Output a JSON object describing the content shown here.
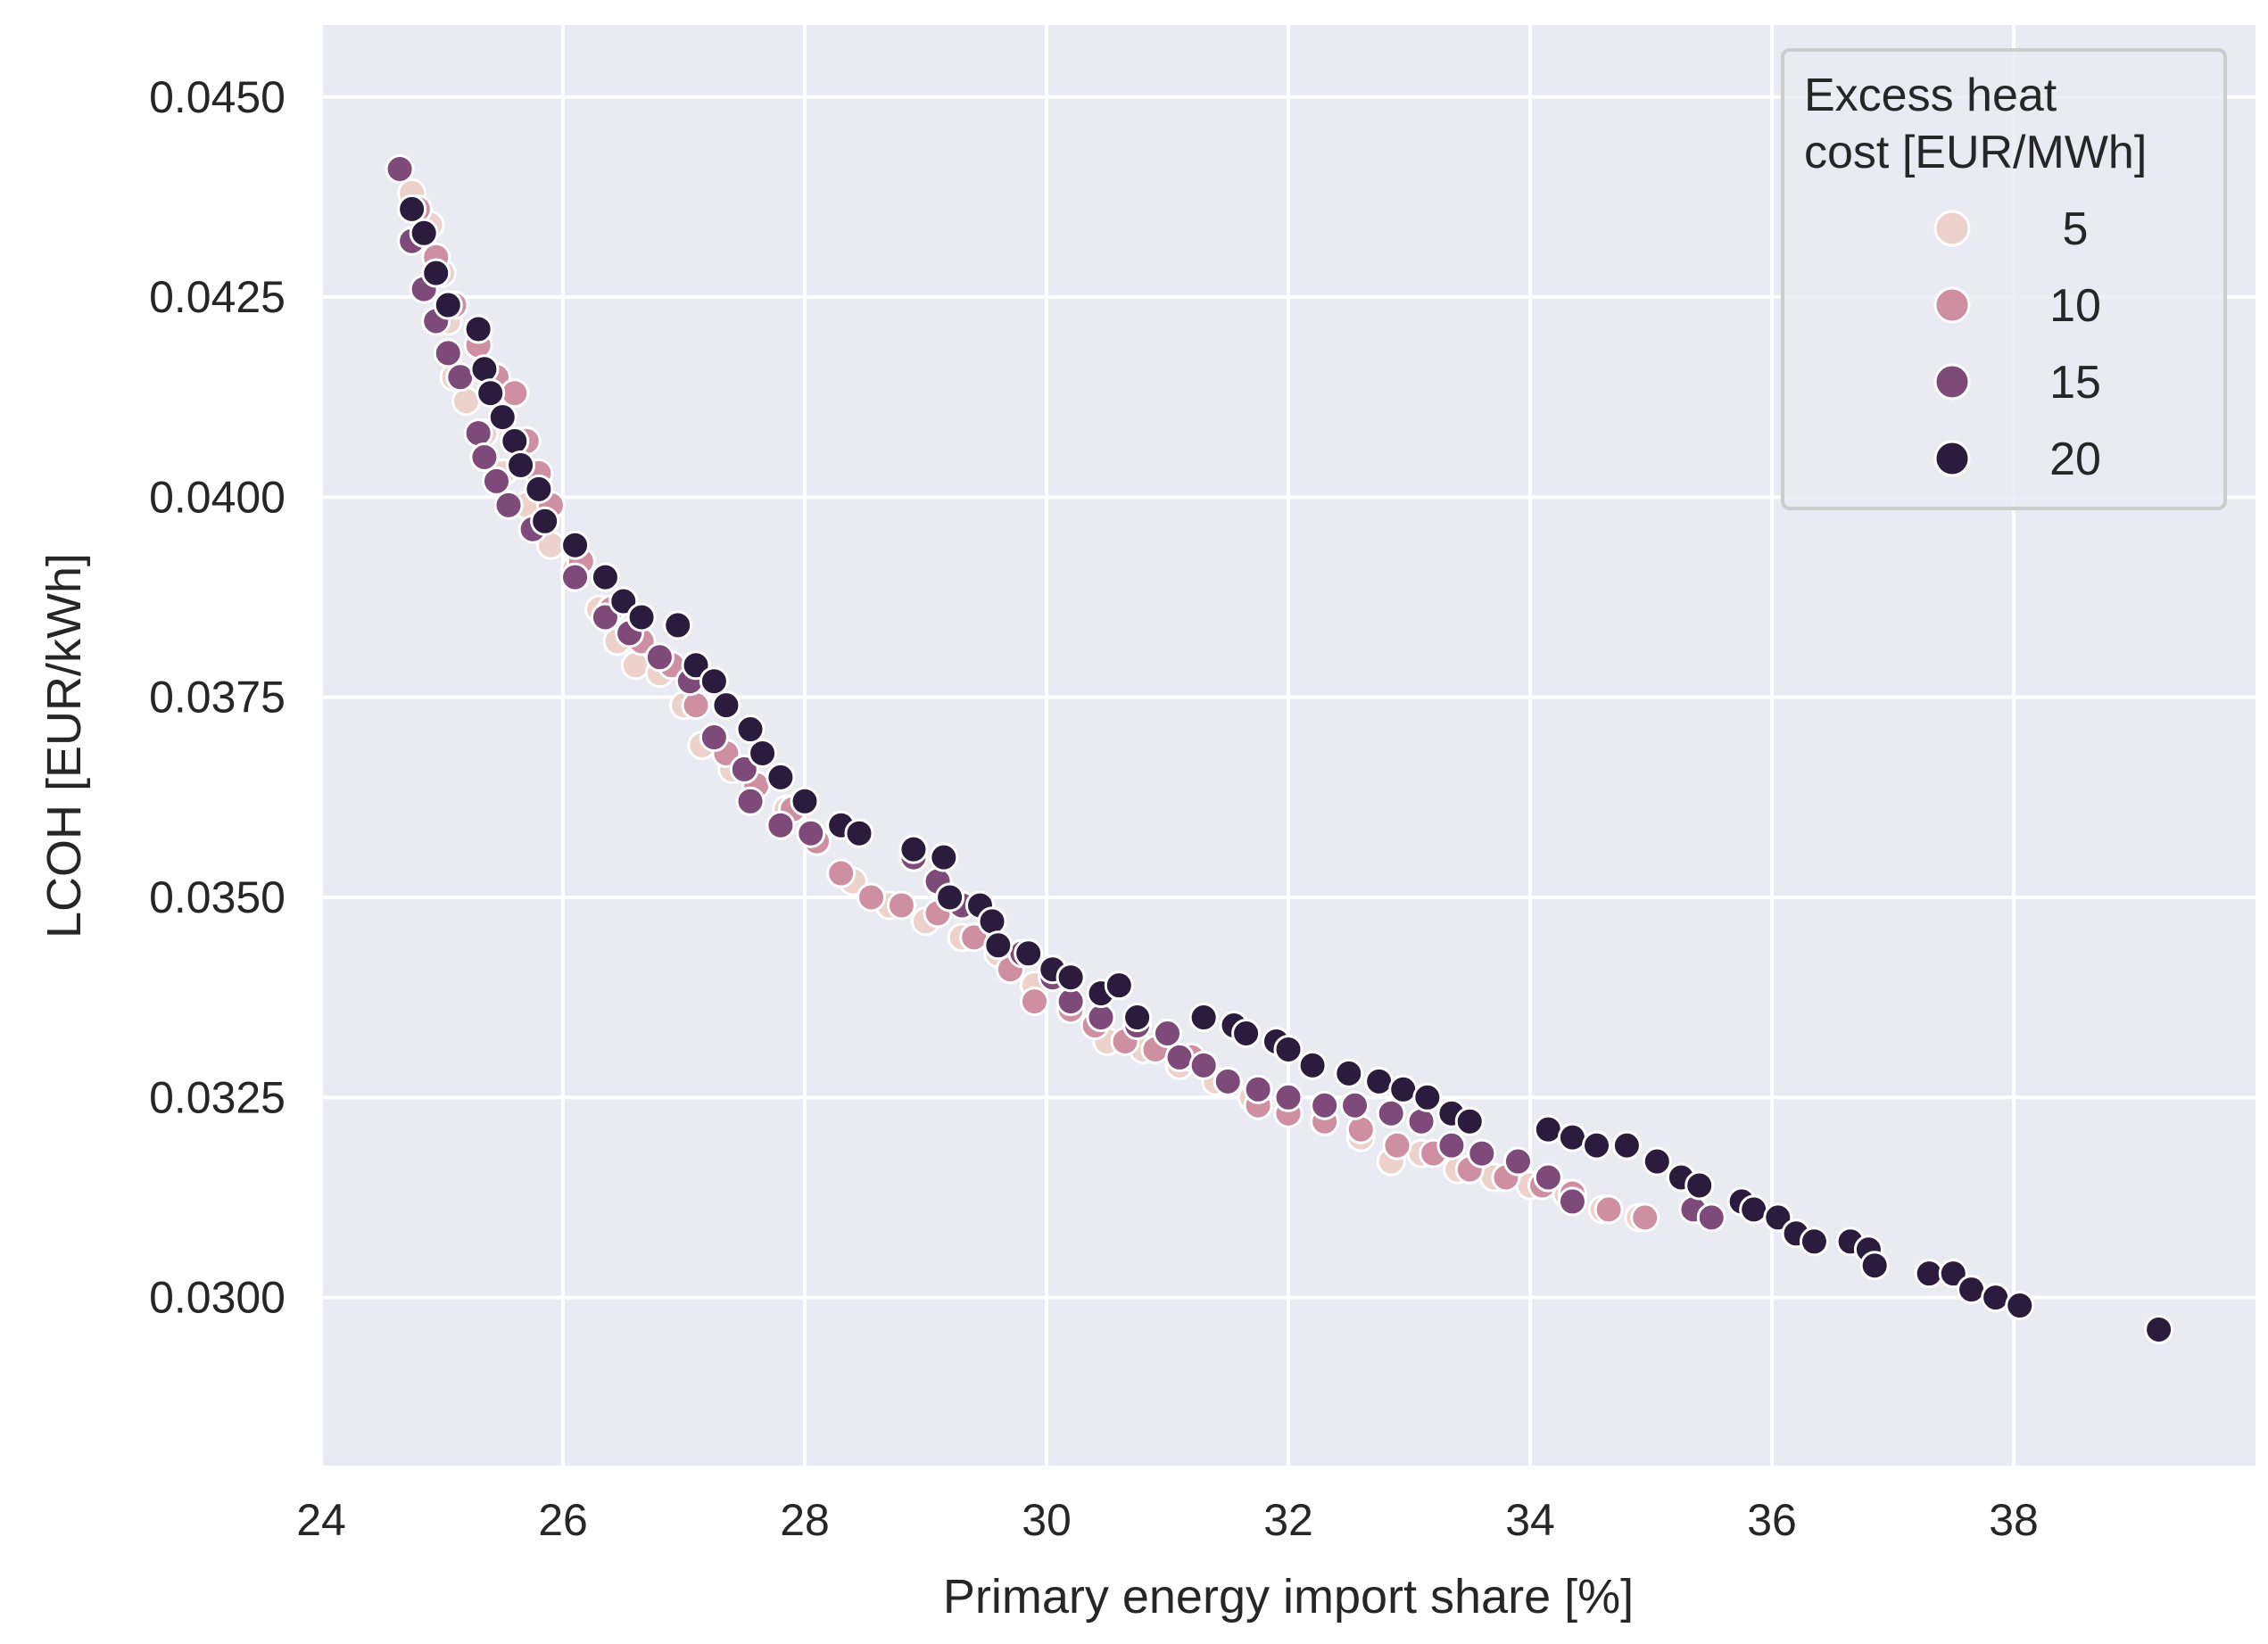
{
  "chart_data": {
    "type": "scatter",
    "title": "",
    "xlabel": "Primary energy import share [%]",
    "ylabel": "LCOH [EUR/kWh]",
    "xlim": [
      24,
      40.0
    ],
    "ylim": [
      0.0279,
      0.0459
    ],
    "x_ticks": [
      24,
      26,
      28,
      30,
      32,
      34,
      36,
      38
    ],
    "x_tick_labels": [
      "24",
      "26",
      "28",
      "30",
      "32",
      "34",
      "36",
      "38"
    ],
    "y_ticks": [
      0.03,
      0.0325,
      0.035,
      0.0375,
      0.04,
      0.0425,
      0.045
    ],
    "y_tick_labels": [
      "0.0300",
      "0.0325",
      "0.0350",
      "0.0375",
      "0.0400",
      "0.0425",
      "0.0450"
    ],
    "grid": true,
    "legend": {
      "title_lines": [
        "Excess heat",
        "cost [EUR/MWh]"
      ],
      "placement": "top-right"
    },
    "series": [
      {
        "name": "5",
        "color": "#edd1cb",
        "points": [
          [
            24.75,
            0.0438
          ],
          [
            24.9,
            0.0434
          ],
          [
            25.0,
            0.0428
          ],
          [
            25.05,
            0.0422
          ],
          [
            25.1,
            0.0415
          ],
          [
            25.2,
            0.0412
          ],
          [
            25.35,
            0.0408
          ],
          [
            25.5,
            0.0403
          ],
          [
            25.7,
            0.0399
          ],
          [
            25.9,
            0.0394
          ],
          [
            26.1,
            0.0391
          ],
          [
            26.3,
            0.0386
          ],
          [
            26.45,
            0.0382
          ],
          [
            26.6,
            0.0379
          ],
          [
            26.8,
            0.0378
          ],
          [
            27.0,
            0.0374
          ],
          [
            27.15,
            0.0369
          ],
          [
            27.4,
            0.0366
          ],
          [
            27.6,
            0.0364
          ],
          [
            27.85,
            0.0361
          ],
          [
            28.1,
            0.0357
          ],
          [
            28.4,
            0.0352
          ],
          [
            28.7,
            0.0349
          ],
          [
            29.0,
            0.0347
          ],
          [
            29.3,
            0.0345
          ],
          [
            29.6,
            0.0343
          ],
          [
            29.9,
            0.0339
          ],
          [
            30.2,
            0.0336
          ],
          [
            30.5,
            0.0332
          ],
          [
            30.8,
            0.0331
          ],
          [
            31.1,
            0.0329
          ],
          [
            31.4,
            0.0327
          ],
          [
            31.7,
            0.0325
          ],
          [
            32.0,
            0.0323
          ],
          [
            32.3,
            0.0322
          ],
          [
            32.6,
            0.032
          ],
          [
            32.85,
            0.0317
          ],
          [
            33.1,
            0.0318
          ],
          [
            33.4,
            0.0316
          ],
          [
            33.7,
            0.0315
          ],
          [
            34.0,
            0.0314
          ],
          [
            34.3,
            0.0313
          ],
          [
            34.6,
            0.0311
          ],
          [
            34.9,
            0.031
          ]
        ]
      },
      {
        "name": "10",
        "color": "#cf8fa3",
        "points": [
          [
            24.8,
            0.0436
          ],
          [
            24.95,
            0.043
          ],
          [
            25.1,
            0.0424
          ],
          [
            25.3,
            0.0419
          ],
          [
            25.45,
            0.0415
          ],
          [
            25.6,
            0.0413
          ],
          [
            25.7,
            0.0407
          ],
          [
            25.8,
            0.0403
          ],
          [
            25.9,
            0.0399
          ],
          [
            26.15,
            0.0392
          ],
          [
            26.4,
            0.0386
          ],
          [
            26.65,
            0.0382
          ],
          [
            26.9,
            0.0379
          ],
          [
            27.1,
            0.0374
          ],
          [
            27.35,
            0.0368
          ],
          [
            27.6,
            0.0364
          ],
          [
            27.9,
            0.0361
          ],
          [
            28.1,
            0.0357
          ],
          [
            28.3,
            0.0353
          ],
          [
            28.55,
            0.035
          ],
          [
            28.8,
            0.0349
          ],
          [
            29.1,
            0.0348
          ],
          [
            29.4,
            0.0345
          ],
          [
            29.7,
            0.0341
          ],
          [
            29.9,
            0.0337
          ],
          [
            30.2,
            0.0336
          ],
          [
            30.4,
            0.0334
          ],
          [
            30.65,
            0.0332
          ],
          [
            30.9,
            0.0331
          ],
          [
            31.2,
            0.033
          ],
          [
            31.5,
            0.0327
          ],
          [
            31.75,
            0.0324
          ],
          [
            32.0,
            0.0323
          ],
          [
            32.3,
            0.0322
          ],
          [
            32.6,
            0.0321
          ],
          [
            32.9,
            0.0319
          ],
          [
            33.2,
            0.0318
          ],
          [
            33.5,
            0.0316
          ],
          [
            33.8,
            0.0315
          ],
          [
            34.1,
            0.0314
          ],
          [
            34.35,
            0.0313
          ],
          [
            34.65,
            0.0311
          ],
          [
            34.95,
            0.031
          ]
        ]
      },
      {
        "name": "15",
        "color": "#7d4a7a",
        "points": [
          [
            24.65,
            0.0441
          ],
          [
            24.75,
            0.0432
          ],
          [
            24.85,
            0.0426
          ],
          [
            24.95,
            0.0422
          ],
          [
            25.05,
            0.0418
          ],
          [
            25.15,
            0.0415
          ],
          [
            25.3,
            0.0408
          ],
          [
            25.35,
            0.0405
          ],
          [
            25.45,
            0.0402
          ],
          [
            25.55,
            0.0399
          ],
          [
            25.75,
            0.0396
          ],
          [
            26.1,
            0.039
          ],
          [
            26.35,
            0.0385
          ],
          [
            26.55,
            0.0383
          ],
          [
            26.8,
            0.038
          ],
          [
            27.05,
            0.0377
          ],
          [
            27.25,
            0.037
          ],
          [
            27.5,
            0.0366
          ],
          [
            27.55,
            0.0362
          ],
          [
            27.8,
            0.0359
          ],
          [
            28.05,
            0.0358
          ],
          [
            28.9,
            0.0355
          ],
          [
            29.1,
            0.0352
          ],
          [
            29.3,
            0.0349
          ],
          [
            29.55,
            0.0347
          ],
          [
            29.8,
            0.0343
          ],
          [
            30.05,
            0.034
          ],
          [
            30.2,
            0.0337
          ],
          [
            30.45,
            0.0335
          ],
          [
            30.75,
            0.0334
          ],
          [
            31.0,
            0.0333
          ],
          [
            31.1,
            0.033
          ],
          [
            31.3,
            0.0329
          ],
          [
            31.5,
            0.0327
          ],
          [
            31.75,
            0.0326
          ],
          [
            32.0,
            0.0325
          ],
          [
            32.3,
            0.0324
          ],
          [
            32.55,
            0.0324
          ],
          [
            32.85,
            0.0323
          ],
          [
            33.1,
            0.0322
          ],
          [
            33.35,
            0.0319
          ],
          [
            33.6,
            0.0318
          ],
          [
            33.9,
            0.0317
          ],
          [
            34.15,
            0.0315
          ],
          [
            34.35,
            0.0312
          ],
          [
            35.35,
            0.0311
          ],
          [
            35.5,
            0.031
          ]
        ]
      },
      {
        "name": "20",
        "color": "#2b1b3d",
        "points": [
          [
            24.75,
            0.0436
          ],
          [
            24.85,
            0.0433
          ],
          [
            24.95,
            0.0428
          ],
          [
            25.05,
            0.0424
          ],
          [
            25.3,
            0.0421
          ],
          [
            25.35,
            0.0416
          ],
          [
            25.4,
            0.0413
          ],
          [
            25.5,
            0.041
          ],
          [
            25.6,
            0.0407
          ],
          [
            25.65,
            0.0404
          ],
          [
            25.8,
            0.0401
          ],
          [
            25.85,
            0.0397
          ],
          [
            26.1,
            0.0394
          ],
          [
            26.35,
            0.039
          ],
          [
            26.5,
            0.0387
          ],
          [
            26.65,
            0.0385
          ],
          [
            26.95,
            0.0384
          ],
          [
            27.1,
            0.0379
          ],
          [
            27.25,
            0.0377
          ],
          [
            27.35,
            0.0374
          ],
          [
            27.55,
            0.0371
          ],
          [
            27.65,
            0.0368
          ],
          [
            27.8,
            0.0365
          ],
          [
            28.0,
            0.0362
          ],
          [
            28.3,
            0.0359
          ],
          [
            28.45,
            0.0358
          ],
          [
            28.9,
            0.0356
          ],
          [
            29.15,
            0.0355
          ],
          [
            29.2,
            0.035
          ],
          [
            29.45,
            0.0349
          ],
          [
            29.55,
            0.0347
          ],
          [
            29.6,
            0.0344
          ],
          [
            29.85,
            0.0343
          ],
          [
            30.05,
            0.0341
          ],
          [
            30.2,
            0.034
          ],
          [
            30.45,
            0.0338
          ],
          [
            30.6,
            0.0339
          ],
          [
            30.75,
            0.0335
          ],
          [
            31.3,
            0.0335
          ],
          [
            31.55,
            0.0334
          ],
          [
            31.65,
            0.0333
          ],
          [
            31.9,
            0.0332
          ],
          [
            32.0,
            0.0331
          ],
          [
            32.2,
            0.0329
          ],
          [
            32.5,
            0.0328
          ],
          [
            32.75,
            0.0327
          ],
          [
            32.95,
            0.0326
          ],
          [
            33.15,
            0.0325
          ],
          [
            33.35,
            0.0323
          ],
          [
            33.5,
            0.0322
          ],
          [
            34.15,
            0.0321
          ],
          [
            34.35,
            0.032
          ],
          [
            34.55,
            0.0319
          ],
          [
            34.8,
            0.0319
          ],
          [
            35.05,
            0.0317
          ],
          [
            35.25,
            0.0315
          ],
          [
            35.4,
            0.0314
          ],
          [
            35.75,
            0.0312
          ],
          [
            35.85,
            0.0311
          ],
          [
            36.05,
            0.031
          ],
          [
            36.2,
            0.0308
          ],
          [
            36.35,
            0.0307
          ],
          [
            36.65,
            0.0307
          ],
          [
            36.8,
            0.0306
          ],
          [
            36.85,
            0.0304
          ],
          [
            37.3,
            0.0303
          ],
          [
            37.5,
            0.0303
          ],
          [
            37.65,
            0.0301
          ],
          [
            37.85,
            0.03
          ],
          [
            38.05,
            0.0299
          ],
          [
            39.2,
            0.0296
          ]
        ]
      }
    ]
  }
}
